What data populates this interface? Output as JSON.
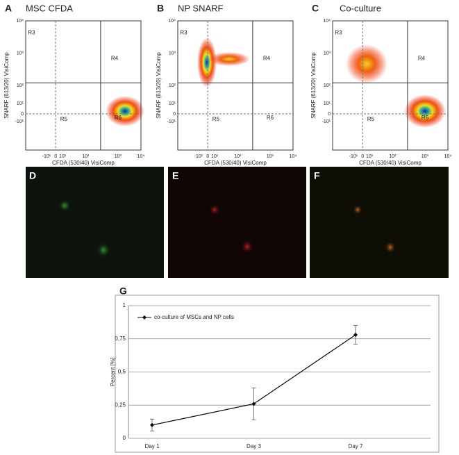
{
  "flow_panels": [
    {
      "letter": "A",
      "title": "MSC CFDA",
      "x_label": "CFDA (530/40) VisiComp",
      "y_label": "SNARF (613/20) VisiComp",
      "x_ticks": [
        "-10¹",
        "0",
        "10¹",
        "10²",
        "10³",
        "10⁴"
      ],
      "y_ticks": [
        "10⁴",
        "10³",
        "10²",
        "10¹",
        "0",
        "-10¹"
      ],
      "regions": [
        "R3",
        "R4",
        "R5",
        "R6"
      ]
    },
    {
      "letter": "B",
      "title": "NP SNARF",
      "x_label": "CFDA (530/40) VisiComp",
      "y_label": "SNARF (613/20) VisiComp",
      "x_ticks": [
        "-10¹",
        "0",
        "10¹",
        "10²",
        "10³",
        "10⁴"
      ],
      "y_ticks": [
        "10⁴",
        "10³",
        "10²",
        "10¹",
        "0",
        "-10¹"
      ],
      "regions": [
        "R3",
        "R4",
        "R5",
        "R6"
      ]
    },
    {
      "letter": "C",
      "title": "Co-culture",
      "x_label": "CFDA (530/40) VisiComp",
      "y_label": "SNARF (613/20) VisiComp",
      "x_ticks": [
        "-10¹",
        "0",
        "10¹",
        "10²",
        "10³",
        "10⁴"
      ],
      "y_ticks": [
        "10⁴",
        "10³",
        "10²",
        "10¹",
        "0",
        "-10¹"
      ],
      "regions": [
        "R3",
        "R4",
        "R5",
        "R6"
      ]
    }
  ],
  "image_panels": [
    "D",
    "E",
    "F"
  ],
  "chart_data": [
    {
      "type": "line",
      "letter": "G",
      "y_label": "Percent [%]",
      "categories": [
        "Day 1",
        "Day 3",
        "Day 7"
      ],
      "series": [
        {
          "name": "co-culture of MSCs and NP cells",
          "color": "#000000",
          "values": [
            0.1,
            0.26,
            0.78
          ],
          "errors": [
            0.045,
            0.12,
            0.07
          ]
        }
      ],
      "ylim": [
        0,
        1
      ],
      "yticks": [
        0,
        {
          "value": 0.25,
          "label": "0,25"
        },
        {
          "value": 0.5,
          "label": "0,5"
        },
        {
          "value": 0.75,
          "label": "0,75"
        },
        1
      ],
      "grid": true
    }
  ]
}
